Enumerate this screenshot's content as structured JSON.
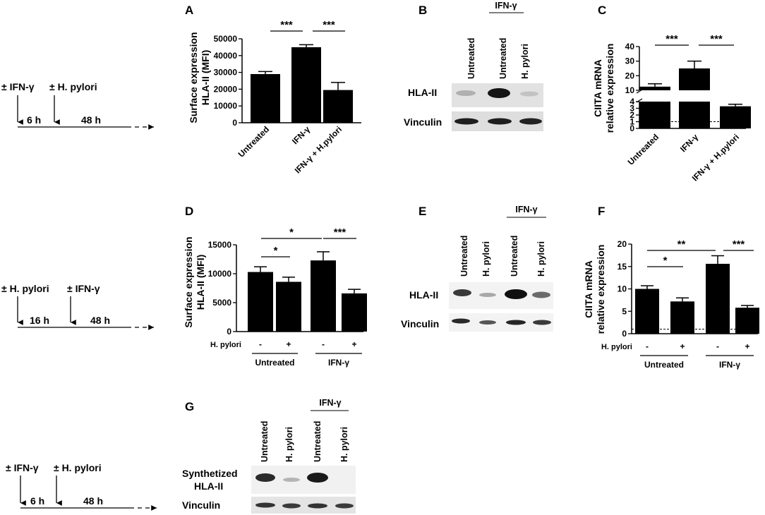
{
  "timelines": [
    {
      "first": "± IFN-γ",
      "second": "± H. pylori",
      "dur1": "6 h",
      "dur2": "48 h"
    },
    {
      "first": "± H. pylori",
      "second": "± IFN-γ",
      "dur1": "16 h",
      "dur2": "48 h"
    },
    {
      "first": "± IFN-γ",
      "second": "± H. pylori",
      "dur1": "6 h",
      "dur2": "48 h"
    }
  ],
  "panels": {
    "A": "A",
    "B": "B",
    "C": "C",
    "D": "D",
    "E": "E",
    "F": "F",
    "G": "G"
  },
  "chart_data": [
    {
      "panel": "A",
      "type": "bar",
      "ylabel": "Surface expression HLA-II (MFI)",
      "ylim": [
        0,
        50000
      ],
      "yticks": [
        "0",
        "10000",
        "20000",
        "30000",
        "40000",
        "50000"
      ],
      "categories": [
        "Untreated",
        "IFN-γ",
        "IFN-γ + H.pylori"
      ],
      "values": [
        29000,
        45000,
        19500
      ],
      "errors": [
        1500,
        1500,
        4500
      ],
      "significance": [
        "***",
        "***"
      ]
    },
    {
      "panel": "C",
      "type": "bar",
      "ylabel": "CIITA mRNA relative expression",
      "ylim": [
        0,
        40
      ],
      "scale": "broken axis",
      "yticks_lower": [
        "0",
        "1",
        "2",
        "3",
        "4"
      ],
      "yticks_upper": [
        "10",
        "20",
        "30",
        "40"
      ],
      "categories": [
        "Untreated",
        "IFN-γ",
        "IFN-γ + H.pylori"
      ],
      "values": [
        12.5,
        25,
        3.3
      ],
      "errors": [
        2,
        5,
        0.3
      ],
      "reference_line": 1,
      "significance": [
        "***",
        "***"
      ]
    },
    {
      "panel": "D",
      "type": "bar",
      "ylabel": "Surface expression HLA-II (MFI)",
      "ylim": [
        0,
        15000
      ],
      "yticks": [
        "0",
        "5000",
        "10000",
        "15000"
      ],
      "hp_label": "H. pylori",
      "categories": [
        "-",
        "+",
        "-",
        "+"
      ],
      "groups": [
        "Untreated",
        "IFN-γ"
      ],
      "values": [
        10300,
        8600,
        12300,
        6600
      ],
      "errors": [
        900,
        800,
        1500,
        700
      ],
      "significance": [
        "*",
        "*",
        "***"
      ]
    },
    {
      "panel": "F",
      "type": "bar",
      "ylabel": "CIITA mRNA relative expression",
      "ylim": [
        0,
        20
      ],
      "yticks": [
        "0",
        "5",
        "10",
        "15",
        "20"
      ],
      "hp_label": "H. pylori",
      "categories": [
        "-",
        "+",
        "-",
        "+"
      ],
      "groups": [
        "Untreated",
        "IFN-γ"
      ],
      "values": [
        10,
        7.2,
        15.6,
        5.8
      ],
      "errors": [
        0.7,
        0.8,
        1.8,
        0.5
      ],
      "reference_line": 1,
      "significance": [
        "*",
        "**",
        "***"
      ]
    }
  ],
  "blots": {
    "B": {
      "group": "IFN-γ",
      "lanes": [
        "Untreated",
        "Untreated",
        "H. pylori"
      ],
      "rows": [
        "HLA-II",
        "Vinculin"
      ]
    },
    "E": {
      "group": "IFN-γ",
      "lanes": [
        "Untreated",
        "H. pylori",
        "Untreated",
        "H. pylori"
      ],
      "rows": [
        "HLA-II",
        "Vinculin"
      ]
    },
    "G": {
      "group": "IFN-γ",
      "lanes": [
        "Untreated",
        "H. pylori",
        "Untreated",
        "H. pylori"
      ],
      "rows": [
        "Synthetized",
        "HLA-II",
        "Vinculin"
      ]
    }
  }
}
